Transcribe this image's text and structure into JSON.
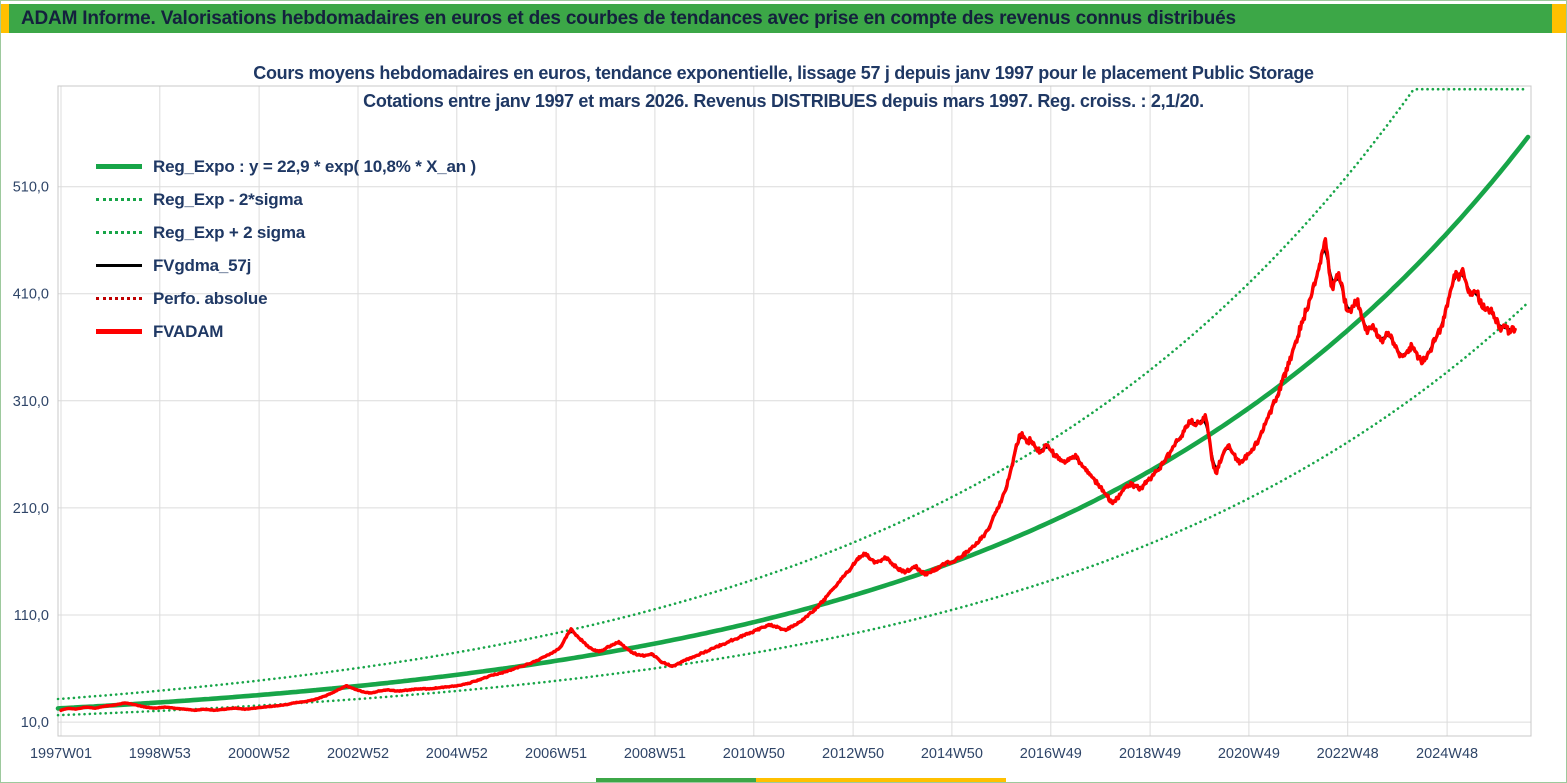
{
  "header": {
    "title": "ADAM Informe. Valorisations hebdomadaires en euros et des courbes de tendances avec prise en compte des revenus connus distribués"
  },
  "legend": {
    "items": [
      {
        "label": "Reg_Expo : y = 22,9 * exp( 10,8% *  X_an )",
        "color": "#17A548",
        "style": "solid",
        "weight": 5
      },
      {
        "label": "Reg_Exp - 2*sigma",
        "color": "#17A548",
        "style": "dotted",
        "weight": 3
      },
      {
        "label": "Reg_Exp + 2 sigma",
        "color": "#17A548",
        "style": "dotted",
        "weight": 3
      },
      {
        "label": "FVgdma_57j",
        "color": "#000000",
        "style": "solid",
        "weight": 3
      },
      {
        "label": "Perfo. absolue",
        "color": "#C00000",
        "style": "dotted",
        "weight": 3
      },
      {
        "label": "FVADAM",
        "color": "#FE0000",
        "style": "solid",
        "weight": 5
      }
    ]
  },
  "chart_data": {
    "type": "line",
    "title_line1": "Cours moyens hebdomadaires en euros, tendance exponentielle, lissage 57 j depuis janv 1997 pour le placement Public Storage",
    "title_line2": "Cotations entre janv 1997 et mars 2026. Revenus DISTRIBUES depuis mars 1997. Reg. croiss. : 2,1/20.",
    "xlabel": "",
    "ylabel": "",
    "grid": true,
    "legend_position": "top-left-inside",
    "xlim": [
      -0.06,
      29.6
    ],
    "ylim": [
      -3,
      604
    ],
    "x_unit": "years since 1997W01",
    "y_ticks": [
      {
        "label": "510,0",
        "v": 510
      },
      {
        "label": "410,0",
        "v": 410
      },
      {
        "label": "310,0",
        "v": 310
      },
      {
        "label": "210,0",
        "v": 210
      },
      {
        "label": "110,0",
        "v": 110
      },
      {
        "label": "10,0",
        "v": 10
      }
    ],
    "x_ticks": [
      {
        "label": "1997W01",
        "yr": 0
      },
      {
        "label": "1998W53",
        "yr": 1.99
      },
      {
        "label": "2000W52",
        "yr": 3.99
      },
      {
        "label": "2002W52",
        "yr": 5.98
      },
      {
        "label": "2004W52",
        "yr": 7.97
      },
      {
        "label": "2006W51",
        "yr": 9.97
      },
      {
        "label": "2008W51",
        "yr": 11.96
      },
      {
        "label": "2010W50",
        "yr": 13.95
      },
      {
        "label": "2012W50",
        "yr": 15.95
      },
      {
        "label": "2014W50",
        "yr": 17.94
      },
      {
        "label": "2016W49",
        "yr": 19.93
      },
      {
        "label": "2018W49",
        "yr": 21.93
      },
      {
        "label": "2020W49",
        "yr": 23.92
      },
      {
        "label": "2022W48",
        "yr": 25.91
      },
      {
        "label": "2024W48",
        "yr": 27.91
      }
    ],
    "regression": {
      "name": "Reg_Expo",
      "a": 22.9,
      "annual_rate": 0.108,
      "color": "#17A548"
    },
    "sigma_bands": {
      "lower_name": "Reg_Exp - 2*sigma",
      "upper_name": "Reg_Exp + 2 sigma",
      "multiplier_upper": 1.385,
      "multiplier_lower": 0.722,
      "color": "#17A548"
    },
    "series_meta": [
      {
        "name": "FVgdma_57j",
        "color": "#000000",
        "style": "solid",
        "derived": "57-day moving average of FVADAM"
      },
      {
        "name": "Perfo. absolue",
        "color": "#C00000",
        "style": "dotted",
        "derived": "same path as FVADAM"
      },
      {
        "name": "FVADAM",
        "color": "#FE0000",
        "style": "solid"
      }
    ],
    "fvadam_points": [
      [
        0.0,
        21
      ],
      [
        0.15,
        23
      ],
      [
        0.3,
        22
      ],
      [
        0.5,
        24
      ],
      [
        0.7,
        23
      ],
      [
        0.9,
        25
      ],
      [
        1.1,
        26
      ],
      [
        1.3,
        28
      ],
      [
        1.5,
        26
      ],
      [
        1.7,
        24
      ],
      [
        1.9,
        23
      ],
      [
        2.1,
        24
      ],
      [
        2.3,
        23
      ],
      [
        2.5,
        22
      ],
      [
        2.7,
        21
      ],
      [
        2.9,
        22
      ],
      [
        3.1,
        21
      ],
      [
        3.3,
        22
      ],
      [
        3.5,
        23
      ],
      [
        3.7,
        22
      ],
      [
        3.9,
        23
      ],
      [
        4.1,
        24
      ],
      [
        4.3,
        25
      ],
      [
        4.5,
        26
      ],
      [
        4.7,
        28
      ],
      [
        4.9,
        29
      ],
      [
        5.1,
        31
      ],
      [
        5.3,
        34
      ],
      [
        5.5,
        38
      ],
      [
        5.74,
        44
      ],
      [
        5.9,
        41
      ],
      [
        6.1,
        38
      ],
      [
        6.24,
        37
      ],
      [
        6.4,
        39
      ],
      [
        6.6,
        40
      ],
      [
        6.8,
        39
      ],
      [
        7.0,
        40
      ],
      [
        7.2,
        41
      ],
      [
        7.4,
        41
      ],
      [
        7.6,
        42
      ],
      [
        7.8,
        43
      ],
      [
        8.0,
        44
      ],
      [
        8.2,
        46
      ],
      [
        8.45,
        50
      ],
      [
        8.7,
        54
      ],
      [
        8.96,
        57
      ],
      [
        9.2,
        61
      ],
      [
        9.46,
        65
      ],
      [
        9.7,
        70
      ],
      [
        9.9,
        75
      ],
      [
        10.06,
        80
      ],
      [
        10.18,
        90
      ],
      [
        10.27,
        97
      ],
      [
        10.38,
        91
      ],
      [
        10.47,
        87
      ],
      [
        10.6,
        81
      ],
      [
        10.75,
        77
      ],
      [
        10.87,
        76
      ],
      [
        11.0,
        80
      ],
      [
        11.1,
        82
      ],
      [
        11.23,
        85
      ],
      [
        11.35,
        80
      ],
      [
        11.47,
        76
      ],
      [
        11.6,
        73
      ],
      [
        11.75,
        72
      ],
      [
        11.88,
        74
      ],
      [
        12.0,
        70
      ],
      [
        12.1,
        66
      ],
      [
        12.32,
        62
      ],
      [
        12.45,
        65
      ],
      [
        12.58,
        68
      ],
      [
        12.75,
        71
      ],
      [
        12.88,
        74
      ],
      [
        13.05,
        77
      ],
      [
        13.18,
        80
      ],
      [
        13.35,
        83
      ],
      [
        13.48,
        86
      ],
      [
        13.65,
        89
      ],
      [
        13.79,
        92
      ],
      [
        13.97,
        95
      ],
      [
        14.15,
        99
      ],
      [
        14.29,
        101
      ],
      [
        14.45,
        98
      ],
      [
        14.59,
        96
      ],
      [
        14.75,
        100
      ],
      [
        14.89,
        104
      ],
      [
        15.05,
        110
      ],
      [
        15.2,
        116
      ],
      [
        15.4,
        126
      ],
      [
        15.55,
        134
      ],
      [
        15.66,
        141
      ],
      [
        15.78,
        147
      ],
      [
        15.86,
        151
      ],
      [
        15.97,
        158
      ],
      [
        16.06,
        163
      ],
      [
        16.2,
        168
      ],
      [
        16.3,
        162
      ],
      [
        16.4,
        158
      ],
      [
        16.5,
        161
      ],
      [
        16.6,
        164
      ],
      [
        16.7,
        159
      ],
      [
        16.81,
        155
      ],
      [
        16.9,
        152
      ],
      [
        17.01,
        150
      ],
      [
        17.1,
        153
      ],
      [
        17.21,
        156
      ],
      [
        17.3,
        151
      ],
      [
        17.41,
        148
      ],
      [
        17.5,
        150
      ],
      [
        17.61,
        153
      ],
      [
        17.7,
        155
      ],
      [
        17.81,
        158
      ],
      [
        17.95,
        160
      ],
      [
        18.1,
        164
      ],
      [
        18.22,
        168
      ],
      [
        18.32,
        172
      ],
      [
        18.42,
        176
      ],
      [
        18.52,
        181
      ],
      [
        18.62,
        186
      ],
      [
        18.72,
        195
      ],
      [
        18.82,
        206
      ],
      [
        18.92,
        216
      ],
      [
        19.02,
        226
      ],
      [
        19.1,
        240
      ],
      [
        19.16,
        252
      ],
      [
        19.24,
        268
      ],
      [
        19.32,
        280
      ],
      [
        19.4,
        276
      ],
      [
        19.47,
        271
      ],
      [
        19.52,
        274
      ],
      [
        19.62,
        266
      ],
      [
        19.73,
        262
      ],
      [
        19.8,
        266
      ],
      [
        19.89,
        268
      ],
      [
        19.96,
        262
      ],
      [
        20.03,
        258
      ],
      [
        20.13,
        254
      ],
      [
        20.23,
        252
      ],
      [
        20.33,
        256
      ],
      [
        20.43,
        258
      ],
      [
        20.53,
        251
      ],
      [
        20.63,
        246
      ],
      [
        20.73,
        240
      ],
      [
        20.83,
        235
      ],
      [
        20.93,
        229
      ],
      [
        21.03,
        224
      ],
      [
        21.17,
        213
      ],
      [
        21.25,
        218
      ],
      [
        21.33,
        222
      ],
      [
        21.43,
        228
      ],
      [
        21.54,
        232
      ],
      [
        21.64,
        230
      ],
      [
        21.74,
        228
      ],
      [
        21.84,
        233
      ],
      [
        21.94,
        238
      ],
      [
        22.04,
        243
      ],
      [
        22.14,
        248
      ],
      [
        22.24,
        255
      ],
      [
        22.34,
        262
      ],
      [
        22.44,
        270
      ],
      [
        22.54,
        276
      ],
      [
        22.64,
        284
      ],
      [
        22.74,
        292
      ],
      [
        22.84,
        287
      ],
      [
        22.95,
        291
      ],
      [
        23.05,
        295
      ],
      [
        23.12,
        278
      ],
      [
        23.18,
        255
      ],
      [
        23.25,
        241
      ],
      [
        23.33,
        252
      ],
      [
        23.41,
        262
      ],
      [
        23.51,
        268
      ],
      [
        23.62,
        259
      ],
      [
        23.75,
        252
      ],
      [
        23.85,
        257
      ],
      [
        23.95,
        262
      ],
      [
        24.1,
        272
      ],
      [
        24.25,
        288
      ],
      [
        24.4,
        305
      ],
      [
        24.55,
        322
      ],
      [
        24.7,
        342
      ],
      [
        24.85,
        362
      ],
      [
        24.95,
        378
      ],
      [
        25.1,
        398
      ],
      [
        25.25,
        420
      ],
      [
        25.35,
        438
      ],
      [
        25.45,
        462
      ],
      [
        25.52,
        440
      ],
      [
        25.58,
        412
      ],
      [
        25.65,
        420
      ],
      [
        25.72,
        431
      ],
      [
        25.8,
        415
      ],
      [
        25.88,
        398
      ],
      [
        25.95,
        390
      ],
      [
        26.02,
        399
      ],
      [
        26.1,
        404
      ],
      [
        26.2,
        388
      ],
      [
        26.3,
        375
      ],
      [
        26.4,
        381
      ],
      [
        26.5,
        372
      ],
      [
        26.6,
        366
      ],
      [
        26.7,
        374
      ],
      [
        26.8,
        368
      ],
      [
        26.9,
        356
      ],
      [
        27.0,
        350
      ],
      [
        27.1,
        356
      ],
      [
        27.2,
        361
      ],
      [
        27.3,
        352
      ],
      [
        27.4,
        347
      ],
      [
        27.5,
        352
      ],
      [
        27.6,
        360
      ],
      [
        27.7,
        372
      ],
      [
        27.8,
        378
      ],
      [
        27.9,
        398
      ],
      [
        28.0,
        418
      ],
      [
        28.08,
        430
      ],
      [
        28.15,
        425
      ],
      [
        28.22,
        432
      ],
      [
        28.3,
        418
      ],
      [
        28.4,
        408
      ],
      [
        28.5,
        413
      ],
      [
        28.6,
        400
      ],
      [
        28.7,
        393
      ],
      [
        28.8,
        396
      ],
      [
        28.88,
        387
      ],
      [
        28.95,
        380
      ],
      [
        29.02,
        375
      ],
      [
        29.08,
        382
      ],
      [
        29.15,
        374
      ],
      [
        29.22,
        379
      ],
      [
        29.28,
        374
      ]
    ]
  }
}
